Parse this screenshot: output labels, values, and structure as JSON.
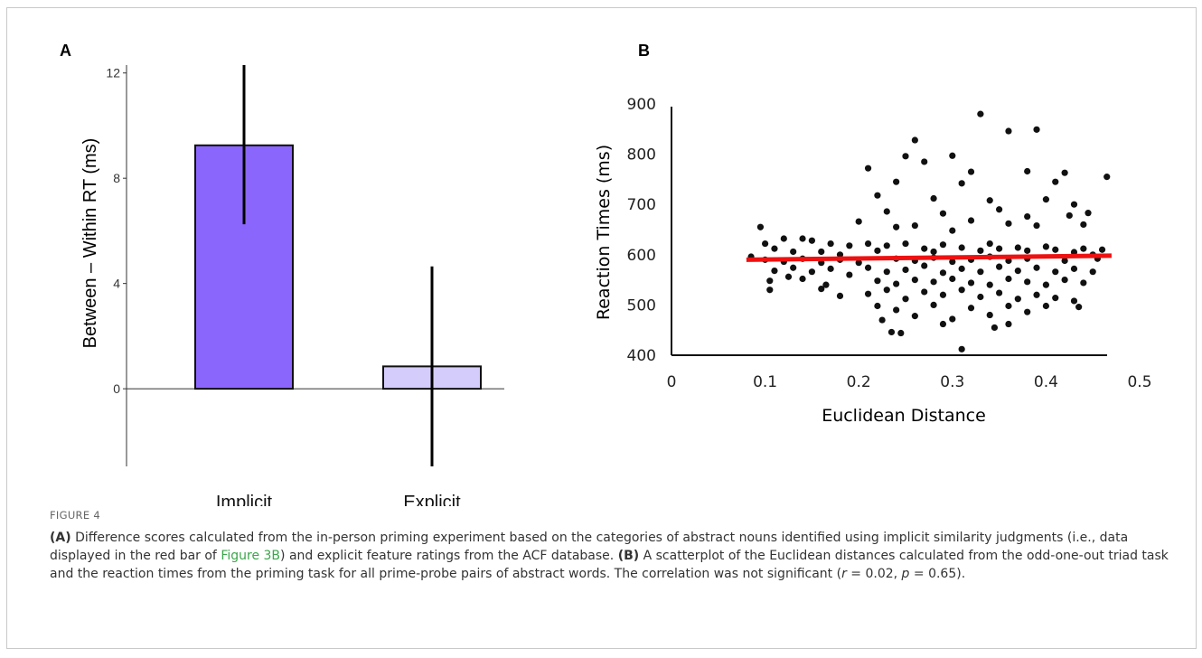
{
  "figure_label": "FIGURE 4",
  "caption": {
    "a_tag": "(A)",
    "a_text_1": " Difference scores calculated from the in-person priming experiment based on the categories of abstract nouns identified using implicit similarity judgments (i.e., data displayed in the red bar of ",
    "a_link": "Figure 3B",
    "a_text_2": ") and explicit feature ratings from the ACF database. ",
    "b_tag": "(B)",
    "b_text_1": " A scatterplot of the Euclidean distances calculated from the odd-one-out triad task and the reaction times from the priming task for all prime-probe pairs of abstract words. The correlation was not significant (",
    "r_sym": "r",
    "r_val": " = 0.02, ",
    "p_sym": "p",
    "p_val": " = 0.65)."
  },
  "colors": {
    "implicit_bar": "#8b66fd",
    "explicit_bar": "#d4ccfb",
    "fit_line": "#ee1111",
    "points": "#111111"
  },
  "chart_data": [
    {
      "panel": "A",
      "type": "bar",
      "ylabel": "Between – Within RT (ms)",
      "categories": [
        "Implicit",
        "Explicit"
      ],
      "values": [
        9.25,
        0.85
      ],
      "error_low": [
        6.25,
        -2.95
      ],
      "error_high": [
        12.3,
        4.65
      ],
      "yticks": [
        0,
        4,
        8,
        12
      ],
      "ylim": [
        -2.95,
        12.3
      ],
      "grid": false
    },
    {
      "panel": "B",
      "type": "scatter",
      "xlabel": "Euclidean Distance",
      "ylabel": "Reaction Times (ms)",
      "xticks": [
        0,
        0.1,
        0.2,
        0.3,
        0.4,
        0.5
      ],
      "yticks": [
        400,
        500,
        600,
        700,
        800,
        900
      ],
      "xlim": [
        0,
        0.5
      ],
      "ylim": [
        400,
        900
      ],
      "grid": false,
      "fit_line": {
        "x": [
          0.08,
          0.47
        ],
        "y": [
          590,
          598
        ]
      },
      "points": [
        [
          0.26,
          828
        ],
        [
          0.33,
          880
        ],
        [
          0.36,
          846
        ],
        [
          0.39,
          849
        ],
        [
          0.21,
          772
        ],
        [
          0.27,
          785
        ],
        [
          0.3,
          797
        ],
        [
          0.25,
          796
        ],
        [
          0.32,
          765
        ],
        [
          0.38,
          766
        ],
        [
          0.42,
          763
        ],
        [
          0.465,
          755
        ],
        [
          0.24,
          745
        ],
        [
          0.31,
          742
        ],
        [
          0.41,
          745
        ],
        [
          0.43,
          700
        ],
        [
          0.22,
          718
        ],
        [
          0.28,
          712
        ],
        [
          0.34,
          708
        ],
        [
          0.4,
          710
        ],
        [
          0.445,
          683
        ],
        [
          0.23,
          686
        ],
        [
          0.29,
          682
        ],
        [
          0.35,
          690
        ],
        [
          0.38,
          676
        ],
        [
          0.425,
          678
        ],
        [
          0.26,
          658
        ],
        [
          0.32,
          668
        ],
        [
          0.36,
          662
        ],
        [
          0.44,
          660
        ],
        [
          0.2,
          666
        ],
        [
          0.24,
          655
        ],
        [
          0.3,
          648
        ],
        [
          0.39,
          658
        ],
        [
          0.46,
          610
        ],
        [
          0.095,
          655
        ],
        [
          0.12,
          632
        ],
        [
          0.15,
          628
        ],
        [
          0.17,
          622
        ],
        [
          0.14,
          632
        ],
        [
          0.1,
          622
        ],
        [
          0.11,
          612
        ],
        [
          0.13,
          606
        ],
        [
          0.16,
          606
        ],
        [
          0.18,
          600
        ],
        [
          0.19,
          618
        ],
        [
          0.21,
          622
        ],
        [
          0.22,
          608
        ],
        [
          0.23,
          618
        ],
        [
          0.25,
          622
        ],
        [
          0.27,
          612
        ],
        [
          0.28,
          606
        ],
        [
          0.29,
          620
        ],
        [
          0.31,
          614
        ],
        [
          0.33,
          608
        ],
        [
          0.34,
          622
        ],
        [
          0.35,
          612
        ],
        [
          0.37,
          614
        ],
        [
          0.38,
          608
        ],
        [
          0.4,
          616
        ],
        [
          0.41,
          610
        ],
        [
          0.43,
          605
        ],
        [
          0.44,
          612
        ],
        [
          0.45,
          600
        ],
        [
          0.085,
          596
        ],
        [
          0.1,
          590
        ],
        [
          0.12,
          586
        ],
        [
          0.14,
          592
        ],
        [
          0.16,
          584
        ],
        [
          0.18,
          590
        ],
        [
          0.2,
          584
        ],
        [
          0.24,
          592
        ],
        [
          0.26,
          588
        ],
        [
          0.28,
          594
        ],
        [
          0.3,
          586
        ],
        [
          0.32,
          590
        ],
        [
          0.34,
          596
        ],
        [
          0.36,
          588
        ],
        [
          0.38,
          592
        ],
        [
          0.42,
          588
        ],
        [
          0.455,
          592
        ],
        [
          0.11,
          568
        ],
        [
          0.13,
          574
        ],
        [
          0.15,
          566
        ],
        [
          0.17,
          572
        ],
        [
          0.19,
          560
        ],
        [
          0.21,
          574
        ],
        [
          0.23,
          566
        ],
        [
          0.25,
          570
        ],
        [
          0.27,
          578
        ],
        [
          0.29,
          564
        ],
        [
          0.31,
          572
        ],
        [
          0.33,
          566
        ],
        [
          0.35,
          576
        ],
        [
          0.37,
          568
        ],
        [
          0.39,
          574
        ],
        [
          0.41,
          566
        ],
        [
          0.43,
          572
        ],
        [
          0.45,
          566
        ],
        [
          0.105,
          548
        ],
        [
          0.125,
          556
        ],
        [
          0.14,
          552
        ],
        [
          0.165,
          540
        ],
        [
          0.22,
          548
        ],
        [
          0.24,
          542
        ],
        [
          0.26,
          550
        ],
        [
          0.28,
          546
        ],
        [
          0.3,
          552
        ],
        [
          0.32,
          544
        ],
        [
          0.34,
          540
        ],
        [
          0.36,
          552
        ],
        [
          0.38,
          546
        ],
        [
          0.4,
          540
        ],
        [
          0.42,
          550
        ],
        [
          0.44,
          544
        ],
        [
          0.105,
          530
        ],
        [
          0.16,
          532
        ],
        [
          0.18,
          518
        ],
        [
          0.21,
          522
        ],
        [
          0.23,
          530
        ],
        [
          0.25,
          512
        ],
        [
          0.27,
          526
        ],
        [
          0.29,
          520
        ],
        [
          0.31,
          530
        ],
        [
          0.33,
          516
        ],
        [
          0.35,
          524
        ],
        [
          0.37,
          512
        ],
        [
          0.39,
          520
        ],
        [
          0.41,
          514
        ],
        [
          0.43,
          508
        ],
        [
          0.22,
          498
        ],
        [
          0.24,
          490
        ],
        [
          0.26,
          478
        ],
        [
          0.28,
          500
        ],
        [
          0.3,
          472
        ],
        [
          0.32,
          494
        ],
        [
          0.34,
          480
        ],
        [
          0.36,
          498
        ],
        [
          0.38,
          486
        ],
        [
          0.4,
          498
        ],
        [
          0.435,
          496
        ],
        [
          0.225,
          470
        ],
        [
          0.29,
          462
        ],
        [
          0.345,
          455
        ],
        [
          0.36,
          462
        ],
        [
          0.235,
          446
        ],
        [
          0.245,
          444
        ],
        [
          0.31,
          412
        ]
      ]
    }
  ]
}
